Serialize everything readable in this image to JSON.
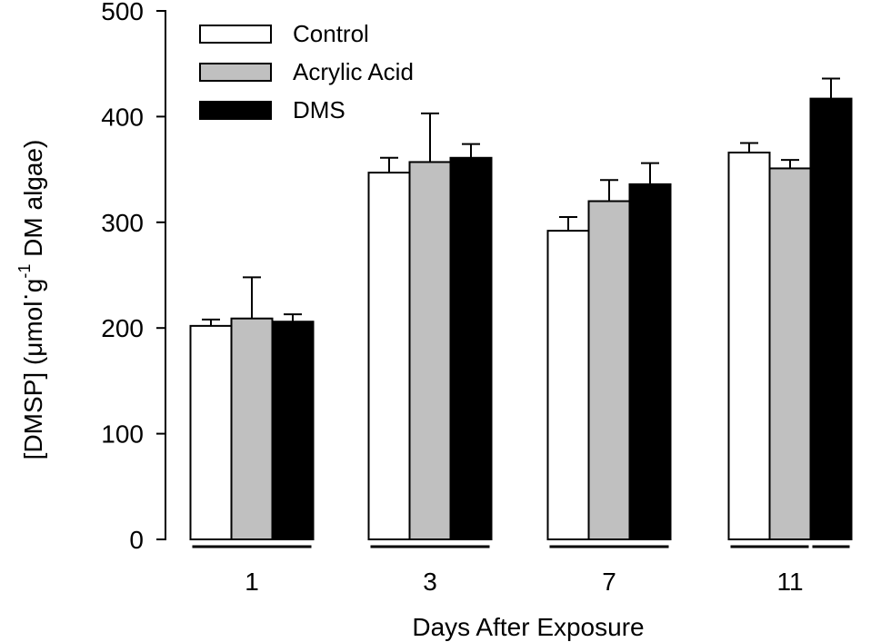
{
  "chart_data": {
    "type": "bar",
    "categories": [
      "1",
      "3",
      "7",
      "11"
    ],
    "series": [
      {
        "name": "Control",
        "values": [
          202,
          347,
          292,
          366
        ],
        "errors": [
          6,
          14,
          13,
          9
        ],
        "color": "#ffffff"
      },
      {
        "name": "Acrylic Acid",
        "values": [
          209,
          357,
          320,
          351
        ],
        "errors": [
          39,
          46,
          20,
          8
        ],
        "color": "#c0c0c0"
      },
      {
        "name": "DMS",
        "values": [
          206,
          361,
          336,
          417
        ],
        "errors": [
          7,
          13,
          20,
          19
        ],
        "color": "#000000"
      }
    ],
    "xlabel": "Days After Exposure",
    "ylabel": {
      "prefix": "[DMSP] (μmol",
      "dot1": "·",
      "g": "g",
      "sup": "-1",
      "suffix": " DM algae)"
    },
    "ylim": [
      0,
      500
    ],
    "yticks": [
      0,
      100,
      200,
      300,
      400,
      500
    ],
    "legend_position": "top-left",
    "grid": false,
    "significance_groups": [
      {
        "category": "1",
        "from_series": 0,
        "to_series": 2
      },
      {
        "category": "3",
        "from_series": 0,
        "to_series": 2
      },
      {
        "category": "7",
        "from_series": 0,
        "to_series": 2
      },
      {
        "category": "11",
        "from_series": 0,
        "to_series": 1
      },
      {
        "category": "11",
        "from_series": 2,
        "to_series": 2
      }
    ]
  }
}
